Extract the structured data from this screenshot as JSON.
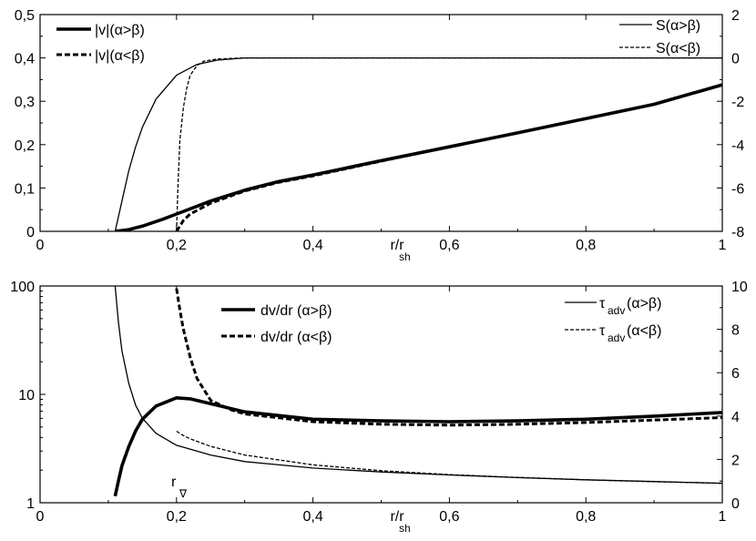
{
  "chart_data": [
    {
      "type": "line",
      "panel": "top",
      "xlabel_main": "r/r",
      "xlabel_sub": "sh",
      "xlim": [
        0,
        1
      ],
      "x_ticks": [
        "0",
        "0,2",
        "0,4",
        "0,6",
        "0,8",
        "1"
      ],
      "ylim_left": [
        0,
        0.5
      ],
      "y_ticks_left": [
        "0",
        "0,1",
        "0,2",
        "0,3",
        "0,4",
        "0,5"
      ],
      "ylim_right": [
        -8,
        2
      ],
      "y_ticks_right": [
        "-8",
        "-6",
        "-4",
        "-2",
        "0",
        "2"
      ],
      "legend_left": [
        {
          "label": "|v|(α>β)",
          "style": "thick-solid"
        },
        {
          "label": "|v|(α<β)",
          "style": "thick-dashed"
        }
      ],
      "legend_right": [
        {
          "label": "S(α>β)",
          "style": "thin-solid"
        },
        {
          "label": "S(α<β)",
          "style": "thin-dashed"
        }
      ],
      "series": [
        {
          "id": "v_gt",
          "axis": "left",
          "style": "thick-solid",
          "x": [
            0.11,
            0.13,
            0.15,
            0.18,
            0.2,
            0.25,
            0.3,
            0.35,
            0.4,
            0.5,
            0.6,
            0.7,
            0.8,
            0.9,
            1.0
          ],
          "y": [
            0.0,
            0.004,
            0.012,
            0.028,
            0.04,
            0.07,
            0.095,
            0.115,
            0.13,
            0.163,
            0.195,
            0.227,
            0.26,
            0.293,
            0.338
          ]
        },
        {
          "id": "v_lt",
          "axis": "left",
          "style": "thick-dashed",
          "x": [
            0.2,
            0.205,
            0.21,
            0.22,
            0.25,
            0.3,
            0.35,
            0.4,
            0.5,
            0.6,
            0.7,
            0.8,
            0.9,
            1.0
          ],
          "y": [
            0.0,
            0.012,
            0.025,
            0.04,
            0.065,
            0.093,
            0.113,
            0.128,
            0.162,
            0.195,
            0.227,
            0.26,
            0.293,
            0.338
          ]
        },
        {
          "id": "s_gt",
          "axis": "right",
          "style": "thin-solid",
          "x": [
            0.11,
            0.12,
            0.13,
            0.14,
            0.15,
            0.17,
            0.2,
            0.23,
            0.26,
            0.3,
            0.35,
            0.4,
            0.6,
            0.8,
            1.0
          ],
          "y": [
            -8,
            -6.6,
            -5.2,
            -4.1,
            -3.2,
            -1.9,
            -0.8,
            -0.3,
            -0.1,
            0,
            0,
            0,
            0,
            0,
            0
          ]
        },
        {
          "id": "s_lt",
          "axis": "right",
          "style": "thin-dashed",
          "x": [
            0.2,
            0.202,
            0.205,
            0.21,
            0.215,
            0.22,
            0.23,
            0.24,
            0.26,
            0.3,
            0.4,
            0.6,
            0.8,
            1.0
          ],
          "y": [
            -8,
            -6,
            -3.8,
            -2.3,
            -1.4,
            -0.8,
            -0.35,
            -0.15,
            -0.05,
            0,
            0,
            0,
            0,
            0
          ]
        }
      ]
    },
    {
      "type": "line",
      "panel": "bottom",
      "xlabel_main": "r/r",
      "xlabel_sub": "sh",
      "xlim": [
        0,
        1
      ],
      "x_ticks": [
        "0",
        "0,2",
        "0,4",
        "0,6",
        "0,8",
        "1"
      ],
      "yscale_left": "log",
      "ylim_left": [
        1,
        100
      ],
      "y_ticks_left": [
        "1",
        "10",
        "100"
      ],
      "ylim_right": [
        0,
        10
      ],
      "y_ticks_right": [
        "0",
        "2",
        "4",
        "6",
        "8",
        "10"
      ],
      "annotation_main": "r",
      "annotation_sub": "∇",
      "legend_left": [
        {
          "label": "dv/dr (α>β)",
          "style": "thick-solid"
        },
        {
          "label": "dv/dr (α<β)",
          "style": "thick-dashed"
        }
      ],
      "legend_right": [
        {
          "label_main": "τ",
          "label_sub": "adv",
          "label_tail": "(α>β)",
          "style": "thin-solid"
        },
        {
          "label_main": "τ",
          "label_sub": "adv",
          "label_tail": "(α<β)",
          "style": "thin-dashed"
        }
      ],
      "series": [
        {
          "id": "dv_gt",
          "axis": "left",
          "style": "thick-solid",
          "x": [
            0.11,
            0.115,
            0.12,
            0.13,
            0.14,
            0.15,
            0.17,
            0.2,
            0.22,
            0.25,
            0.3,
            0.4,
            0.5,
            0.6,
            0.7,
            0.8,
            0.9,
            1.0
          ],
          "y": [
            1.15,
            1.6,
            2.2,
            3.3,
            4.6,
            5.9,
            7.8,
            9.3,
            9.1,
            8.2,
            6.9,
            5.9,
            5.7,
            5.6,
            5.7,
            5.9,
            6.3,
            6.8
          ]
        },
        {
          "id": "dv_lt",
          "axis": "left",
          "style": "thick-dashed",
          "x": [
            0.2,
            0.205,
            0.21,
            0.22,
            0.23,
            0.25,
            0.28,
            0.3,
            0.4,
            0.5,
            0.6,
            0.7,
            0.8,
            0.9,
            1.0
          ],
          "y": [
            95,
            60,
            40,
            22,
            14,
            8.8,
            7.2,
            6.6,
            5.6,
            5.3,
            5.2,
            5.3,
            5.5,
            5.8,
            6.1
          ]
        },
        {
          "id": "tau_gt",
          "axis": "right",
          "style": "thin-solid",
          "x": [
            0.11,
            0.115,
            0.12,
            0.13,
            0.14,
            0.15,
            0.17,
            0.2,
            0.25,
            0.3,
            0.4,
            0.5,
            0.6,
            0.7,
            0.8,
            0.9,
            1.0
          ],
          "y": [
            10,
            8.3,
            7.0,
            5.5,
            4.5,
            3.9,
            3.2,
            2.65,
            2.2,
            1.9,
            1.6,
            1.42,
            1.28,
            1.16,
            1.06,
            0.98,
            0.9
          ]
        },
        {
          "id": "tau_lt",
          "axis": "right",
          "style": "thin-dashed",
          "x": [
            0.2,
            0.21,
            0.22,
            0.25,
            0.3,
            0.4,
            0.5,
            0.6,
            0.7,
            0.8,
            0.9,
            1.0
          ],
          "y": [
            3.3,
            3.1,
            2.95,
            2.6,
            2.2,
            1.75,
            1.48,
            1.3,
            1.17,
            1.06,
            0.97,
            0.9
          ]
        }
      ]
    }
  ]
}
